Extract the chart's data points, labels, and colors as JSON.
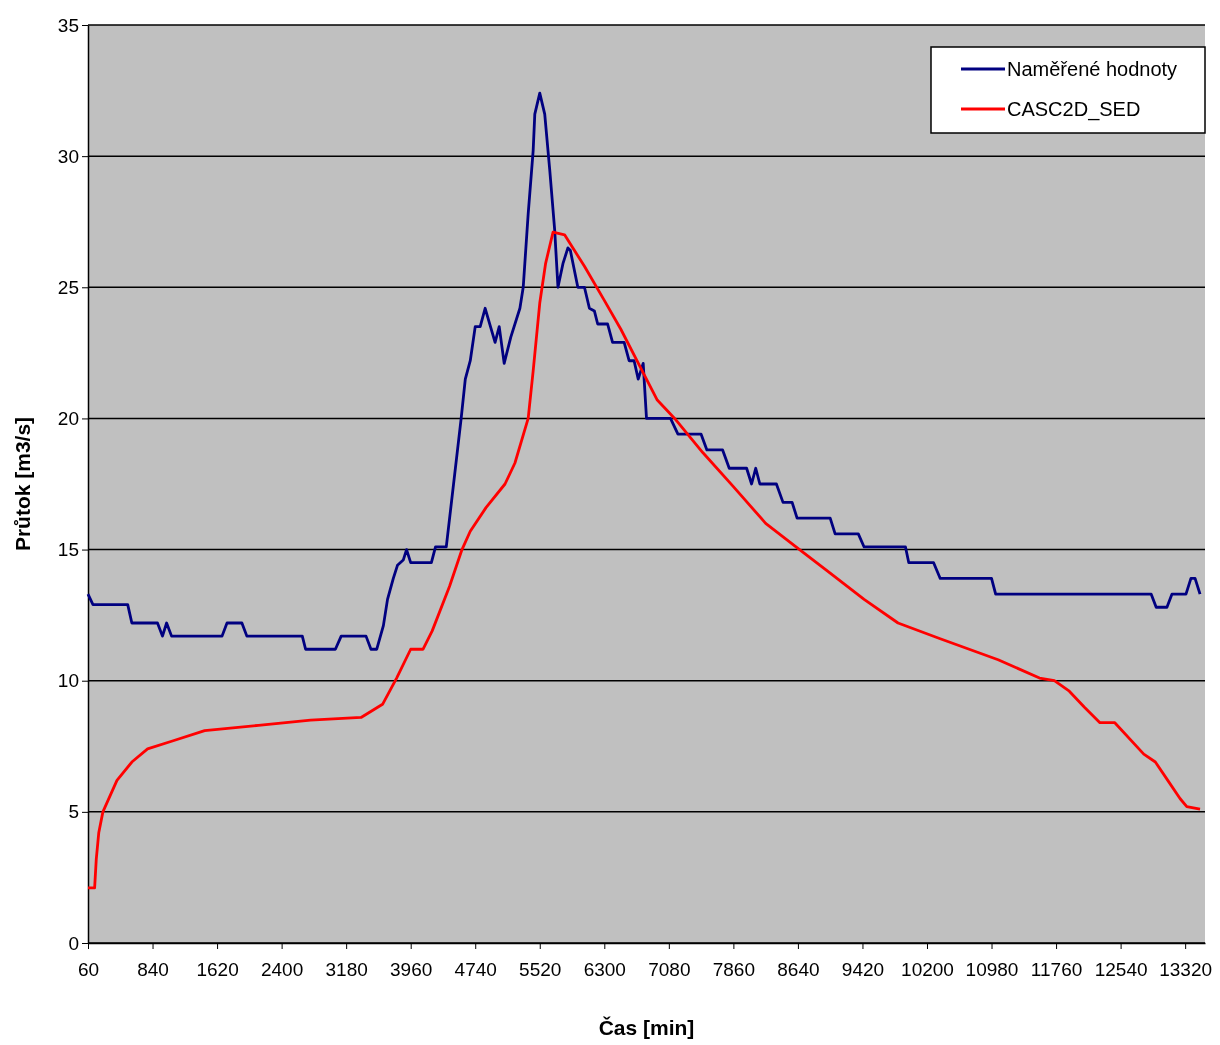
{
  "chart_data": {
    "type": "line",
    "xlabel": "Čas [min]",
    "ylabel": "Průtok [m3/s]",
    "xlim": [
      60,
      13560
    ],
    "xticks": [
      60,
      840,
      1620,
      2400,
      3180,
      3960,
      4740,
      5520,
      6300,
      7080,
      7860,
      8640,
      9420,
      10200,
      10980,
      11760,
      12540,
      13320
    ],
    "ylim": [
      0,
      35
    ],
    "yticks": [
      0,
      5,
      10,
      15,
      20,
      25,
      30,
      35
    ],
    "grid": "y",
    "legend": "top right",
    "marker": "none",
    "line_style": "solid",
    "series": [
      {
        "name": "Naměřené hodnoty",
        "color": "#000080",
        "x": [
          60,
          120,
          540,
          590,
          900,
          960,
          1010,
          1070,
          1680,
          1740,
          1920,
          1980,
          2650,
          2690,
          3050,
          3120,
          3420,
          3480,
          3550,
          3630,
          3680,
          3750,
          3800,
          3870,
          3910,
          3960,
          4210,
          4260,
          4390,
          4570,
          4620,
          4680,
          4740,
          4800,
          4860,
          4980,
          5030,
          5090,
          5170,
          5280,
          5320,
          5380,
          5440,
          5460,
          5520,
          5580,
          5640,
          5700,
          5740,
          5800,
          5860,
          5890,
          5980,
          6060,
          6120,
          6180,
          6220,
          6340,
          6400,
          6540,
          6600,
          6660,
          6710,
          6770,
          6810,
          7100,
          7190,
          7470,
          7540,
          7730,
          7810,
          8020,
          8080,
          8130,
          8180,
          8380,
          8460,
          8570,
          8630,
          9030,
          9090,
          9370,
          9440,
          9940,
          9980,
          10280,
          10360,
          10980,
          11030,
          12910,
          12970,
          13100,
          13160,
          13330,
          13390,
          13440,
          13500
        ],
        "values": [
          13.3,
          12.9,
          12.9,
          12.2,
          12.2,
          11.7,
          12.2,
          11.7,
          11.7,
          12.2,
          12.2,
          11.7,
          11.7,
          11.2,
          11.2,
          11.7,
          11.7,
          11.2,
          11.2,
          12.1,
          13.1,
          13.9,
          14.4,
          14.6,
          15.0,
          14.5,
          14.5,
          15.1,
          15.1,
          20.0,
          21.5,
          22.2,
          23.5,
          23.5,
          24.2,
          22.9,
          23.5,
          22.1,
          23.1,
          24.2,
          25.0,
          27.8,
          30.2,
          31.6,
          32.4,
          31.6,
          29.5,
          27.2,
          25.0,
          25.9,
          26.5,
          26.4,
          25.0,
          25.0,
          24.2,
          24.1,
          23.6,
          23.6,
          22.9,
          22.9,
          22.2,
          22.2,
          21.5,
          22.1,
          20.0,
          20.0,
          19.4,
          19.4,
          18.8,
          18.8,
          18.1,
          18.1,
          17.5,
          18.1,
          17.5,
          17.5,
          16.8,
          16.8,
          16.2,
          16.2,
          15.6,
          15.6,
          15.1,
          15.1,
          14.5,
          14.5,
          13.9,
          13.9,
          13.3,
          13.3,
          12.8,
          12.8,
          13.3,
          13.3,
          13.9,
          13.9,
          13.3
        ]
      },
      {
        "name": "CASC2D_SED",
        "color": "#ff0000",
        "x": [
          60,
          140,
          160,
          190,
          240,
          410,
          590,
          780,
          1080,
          1470,
          2120,
          2750,
          3360,
          3620,
          3790,
          3960,
          4110,
          4220,
          4430,
          4580,
          4680,
          4870,
          5100,
          5220,
          5380,
          5440,
          5520,
          5590,
          5680,
          5820,
          6060,
          6300,
          6500,
          6760,
          6940,
          7150,
          7490,
          7860,
          8250,
          8660,
          9030,
          9440,
          9850,
          10360,
          11060,
          11560,
          11740,
          11920,
          12100,
          12290,
          12470,
          12820,
          12960,
          13110,
          13260,
          13340,
          13500
        ],
        "values": [
          2.1,
          2.1,
          3.2,
          4.2,
          5.0,
          6.2,
          6.9,
          7.4,
          7.7,
          8.1,
          8.3,
          8.5,
          8.6,
          9.1,
          10.1,
          11.2,
          11.2,
          11.9,
          13.6,
          15.0,
          15.7,
          16.6,
          17.5,
          18.3,
          20.0,
          21.8,
          24.4,
          25.9,
          27.1,
          27.0,
          25.8,
          24.5,
          23.4,
          21.8,
          20.7,
          20.0,
          18.7,
          17.4,
          16.0,
          15.0,
          14.1,
          13.1,
          12.2,
          11.6,
          10.8,
          10.1,
          10.0,
          9.6,
          9.0,
          8.4,
          8.4,
          7.2,
          6.9,
          6.2,
          5.5,
          5.2,
          5.1
        ]
      }
    ]
  }
}
